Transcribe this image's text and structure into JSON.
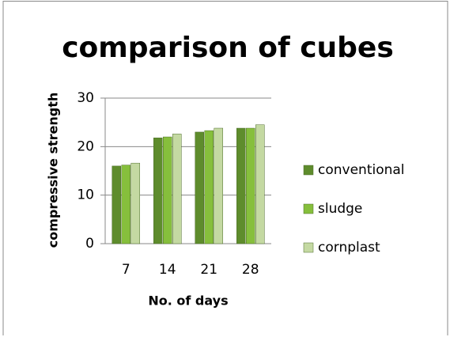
{
  "chart_data": {
    "type": "bar",
    "title": "comparison of cubes",
    "x_label": "No. of days",
    "y_label": "compressive strength",
    "categories": [
      "7",
      "14",
      "21",
      "28"
    ],
    "series": [
      {
        "name": "conventional",
        "color": "#5e8c2c",
        "values": [
          16,
          21.8,
          23,
          23.8
        ]
      },
      {
        "name": "sludge",
        "color": "#86bf3c",
        "values": [
          16.2,
          22,
          23.3,
          23.8
        ]
      },
      {
        "name": "cornplast",
        "color": "#c4d9a2",
        "values": [
          16.6,
          22.6,
          23.8,
          24.5
        ]
      }
    ],
    "ylim": [
      0,
      30
    ],
    "yticks": [
      0,
      10,
      20,
      30
    ],
    "grid": true,
    "legend": "right"
  }
}
